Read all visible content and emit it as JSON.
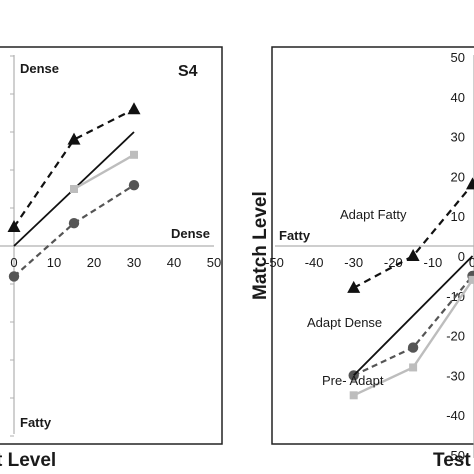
{
  "colors": {
    "axis": "#b0b0b0",
    "frame": "#222222",
    "adapt_dense": "#111111",
    "adapt_fatty": "#111111",
    "neutral_line": "#111111",
    "pre_adapt": "#bdbdbd",
    "circle_series": "#555555"
  },
  "chart_data": [
    {
      "type": "line",
      "panel": "left",
      "title": "S4",
      "xlabel": "t Level",
      "ylabel": "",
      "xlim": [
        -5,
        50
      ],
      "ylim": [
        -50,
        50
      ],
      "x_ticks": [
        "0",
        "10",
        "20",
        "30",
        "40",
        "50"
      ],
      "annotations": [
        "Dense",
        "Dense",
        "Fatty"
      ],
      "series": [
        {
          "marker": "triangle",
          "style": "dashed",
          "x": [
            0,
            15,
            30
          ],
          "y": [
            5,
            28,
            36
          ]
        },
        {
          "marker": "none",
          "style": "solid",
          "x": [
            0,
            30
          ],
          "y": [
            0,
            30
          ]
        },
        {
          "marker": "square",
          "style": "solid",
          "x": [
            15,
            30
          ],
          "y": [
            15,
            24
          ]
        },
        {
          "marker": "circle",
          "style": "dashed",
          "x": [
            0,
            15,
            30
          ],
          "y": [
            -8,
            6,
            16
          ]
        }
      ]
    },
    {
      "type": "line",
      "panel": "right",
      "title": "",
      "xlabel": "Test",
      "ylabel": "Match Level",
      "xlim": [
        -50,
        5
      ],
      "ylim": [
        -50,
        50
      ],
      "x_ticks": [
        "-50",
        "-40",
        "-30",
        "-20",
        "-10",
        "0"
      ],
      "y_ticks": [
        "50",
        "40",
        "30",
        "20",
        "10",
        "0",
        "-10",
        "-20",
        "-30",
        "-40",
        "-50"
      ],
      "annotations": [
        "Fatty",
        "Adapt Fatty",
        "Adapt Dense",
        "Pre- Adapt"
      ],
      "series": [
        {
          "name": "Adapt Fatty",
          "marker": "triangle",
          "style": "dashed",
          "x": [
            -30,
            -15,
            0
          ],
          "y": [
            -8,
            0,
            18
          ]
        },
        {
          "name": "Adapt Dense",
          "marker": "circle",
          "style": "dashed",
          "x": [
            -30,
            -15,
            0
          ],
          "y": [
            -30,
            -23,
            -5
          ]
        },
        {
          "marker": "none",
          "style": "solid",
          "x": [
            -30,
            0
          ],
          "y": [
            -30,
            0
          ]
        },
        {
          "name": "Pre- Adapt",
          "marker": "square",
          "style": "solid",
          "x": [
            -30,
            -15,
            0
          ],
          "y": [
            -35,
            -28,
            -6
          ]
        }
      ]
    }
  ]
}
